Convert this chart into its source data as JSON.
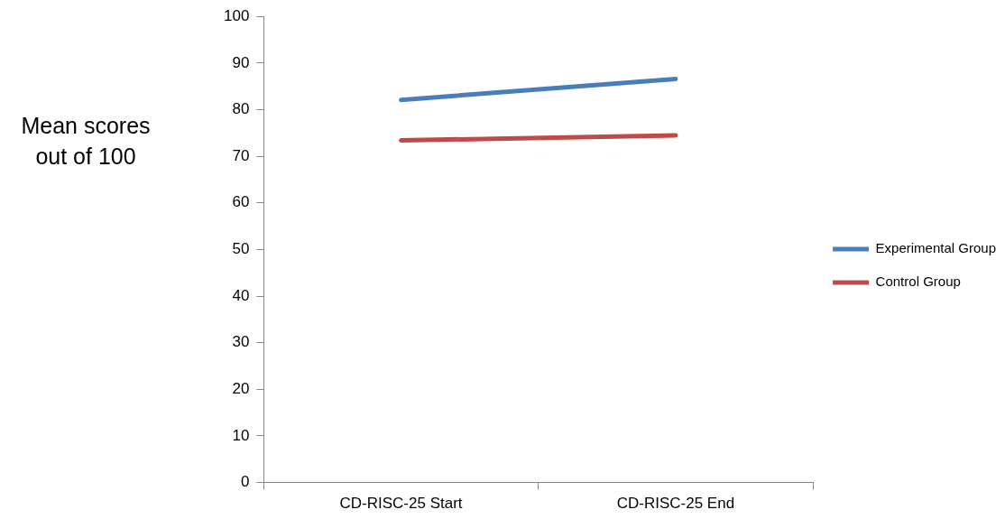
{
  "chart_data": {
    "type": "line",
    "ylabel": "Mean scores out of 100",
    "categories": [
      "CD-RISC-25 Start",
      "CD-RISC-25 End"
    ],
    "series": [
      {
        "name": "Experimental Group",
        "color": "#4a7ebb",
        "values": [
          82.1,
          86.6
        ]
      },
      {
        "name": "Control Group",
        "color": "#be4b48",
        "values": [
          73.4,
          74.5
        ]
      }
    ],
    "ylim": [
      0,
      100
    ],
    "yticks": [
      0,
      10,
      20,
      30,
      40,
      50,
      60,
      70,
      80,
      90,
      100
    ],
    "legend": "right",
    "marker": "none",
    "line_style": "solid"
  }
}
